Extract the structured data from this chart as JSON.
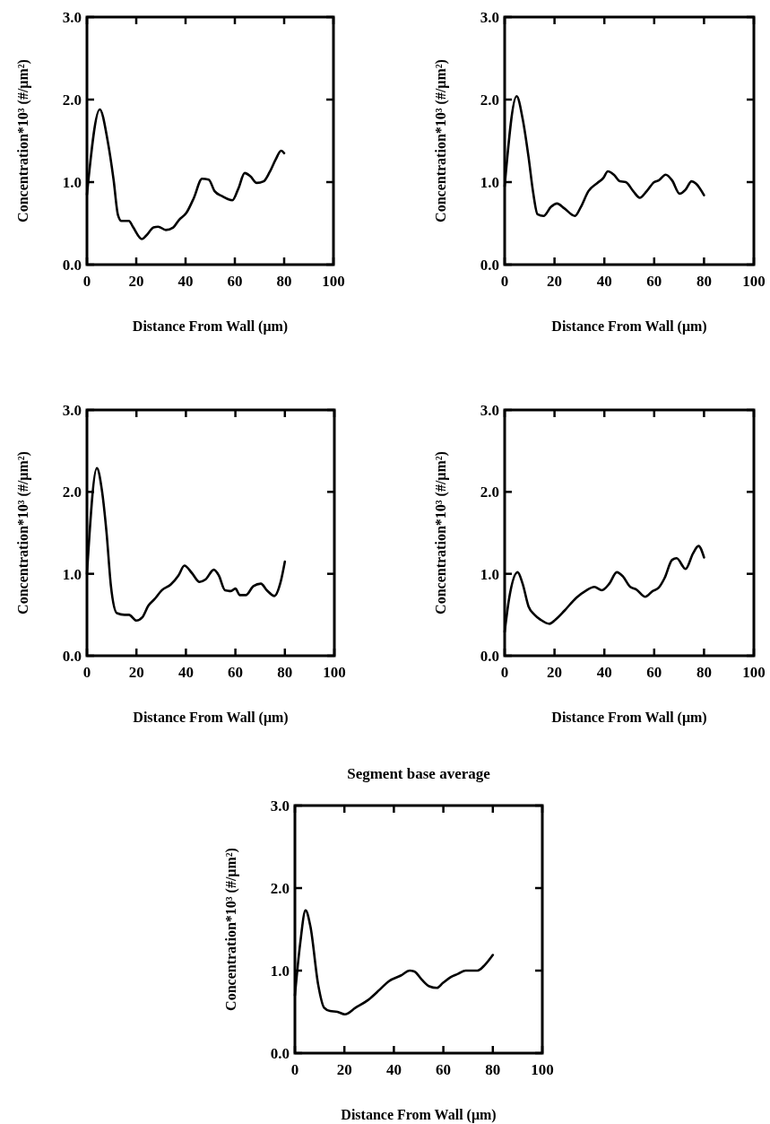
{
  "chart_data": [
    {
      "type": "line",
      "xlabel": "Distance From Wall (μm)",
      "ylabel": "Concentration*10³ (#/μm²)",
      "xlim": [
        0,
        100
      ],
      "xticks": [
        0,
        20,
        40,
        60,
        80,
        100
      ],
      "ylim": [
        0,
        3
      ],
      "yticks": [
        {
          "value": 0,
          "label": "0.0"
        },
        {
          "value": 1,
          "label": "1.0"
        },
        {
          "value": 2,
          "label": "2.0"
        },
        {
          "value": 3,
          "label": "3.0"
        }
      ],
      "grid": false,
      "marker": "none",
      "line_style": "solid",
      "series": [
        {
          "color": "#000000",
          "x": [
            0,
            5.2,
            8.4,
            10.8,
            12.6,
            14,
            17,
            18.8,
            22.3,
            24,
            27,
            28.9,
            32,
            35,
            37.3,
            40.4,
            43.4,
            46.7,
            49.4,
            51.8,
            54.8,
            59,
            61.4,
            64,
            66.3,
            68.9,
            71.7,
            74.1,
            76.5,
            78.8,
            80
          ],
          "values": [
            0.85,
            1.88,
            1.5,
            1.03,
            0.6,
            0.53,
            0.53,
            0.45,
            0.31,
            0.35,
            0.45,
            0.46,
            0.42,
            0.45,
            0.54,
            0.63,
            0.81,
            1.04,
            1.03,
            0.89,
            0.83,
            0.78,
            0.92,
            1.11,
            1.07,
            0.99,
            1.01,
            1.12,
            1.27,
            1.38,
            1.35
          ]
        }
      ]
    },
    {
      "type": "line",
      "xlabel": "Distance From Wall (μm)",
      "ylabel": "Concentration*10³ (#/μm²)",
      "xlim": [
        0,
        100
      ],
      "xticks": [
        0,
        20,
        40,
        60,
        80,
        100
      ],
      "ylim": [
        0,
        3
      ],
      "yticks": [
        {
          "value": 0,
          "label": "0.0"
        },
        {
          "value": 1,
          "label": "1.0"
        },
        {
          "value": 2,
          "label": "2.0"
        },
        {
          "value": 3,
          "label": "3.0"
        }
      ],
      "grid": false,
      "marker": "none",
      "line_style": "solid",
      "series": [
        {
          "color": "#000000",
          "x": [
            0,
            4.8,
            7.2,
            9.6,
            11.4,
            13.2,
            15.6,
            18.6,
            21,
            24,
            28.2,
            30.6,
            33.6,
            37.2,
            39.6,
            41.4,
            43.8,
            46.2,
            48.6,
            51.6,
            54.2,
            57,
            60,
            61.8,
            64.6,
            67.2,
            70.2,
            72.6,
            75,
            76.8,
            80
          ],
          "values": [
            0.95,
            2.04,
            1.77,
            1.3,
            0.88,
            0.61,
            0.59,
            0.7,
            0.74,
            0.68,
            0.59,
            0.7,
            0.89,
            0.99,
            1.05,
            1.13,
            1.09,
            1.01,
            1.0,
            0.89,
            0.81,
            0.89,
            1.0,
            1.02,
            1.09,
            1.02,
            0.86,
            0.91,
            1.01,
            0.98,
            0.84
          ]
        }
      ]
    },
    {
      "type": "line",
      "xlabel": "Distance From Wall (μm)",
      "ylabel": "Concentration*10³ (#/μm²)",
      "xlim": [
        0,
        100
      ],
      "xticks": [
        0,
        20,
        40,
        60,
        80,
        100
      ],
      "ylim": [
        0,
        3
      ],
      "yticks": [
        {
          "value": 0,
          "label": "0.0"
        },
        {
          "value": 1,
          "label": "1.0"
        },
        {
          "value": 2,
          "label": "2.0"
        },
        {
          "value": 3,
          "label": "3.0"
        }
      ],
      "grid": false,
      "marker": "none",
      "line_style": "solid",
      "series": [
        {
          "color": "#000000",
          "x": [
            0,
            4,
            6,
            7.9,
            9.7,
            12.1,
            15.2,
            17,
            20,
            22.4,
            24.8,
            27.3,
            30.3,
            33.9,
            37,
            39.4,
            42.4,
            45.5,
            47.9,
            51.3,
            53.3,
            55.8,
            58.2,
            60,
            61.8,
            64.2,
            67.3,
            70.3,
            72.7,
            75.8,
            78.2,
            80
          ],
          "values": [
            1.0,
            2.29,
            2.03,
            1.51,
            0.85,
            0.52,
            0.5,
            0.5,
            0.43,
            0.47,
            0.61,
            0.69,
            0.8,
            0.87,
            0.98,
            1.1,
            1.01,
            0.9,
            0.93,
            1.05,
            0.98,
            0.8,
            0.79,
            0.82,
            0.74,
            0.74,
            0.85,
            0.88,
            0.8,
            0.73,
            0.89,
            1.15
          ]
        }
      ]
    },
    {
      "type": "line",
      "xlabel": "Distance From Wall (μm)",
      "ylabel": "Concentration*10³ (#/μm²)",
      "xlim": [
        0,
        100
      ],
      "xticks": [
        0,
        20,
        40,
        60,
        80,
        100
      ],
      "ylim": [
        0,
        3
      ],
      "yticks": [
        {
          "value": 0,
          "label": "0.0"
        },
        {
          "value": 1,
          "label": "1.0"
        },
        {
          "value": 2,
          "label": "2.0"
        },
        {
          "value": 3,
          "label": "3.0"
        }
      ],
      "grid": false,
      "marker": "none",
      "line_style": "solid",
      "series": [
        {
          "color": "#000000",
          "x": [
            0,
            1.8,
            5.2,
            7.2,
            9.6,
            12,
            14.4,
            18,
            20.4,
            24,
            28.8,
            32.4,
            36,
            39,
            42,
            45,
            47.4,
            50.4,
            52.8,
            56.4,
            59.4,
            61.8,
            64.2,
            67.2,
            69,
            72.6,
            75.6,
            77.8,
            80
          ],
          "values": [
            0.29,
            0.7,
            1.02,
            0.88,
            0.6,
            0.5,
            0.44,
            0.39,
            0.44,
            0.55,
            0.71,
            0.79,
            0.84,
            0.8,
            0.88,
            1.02,
            0.97,
            0.84,
            0.81,
            0.72,
            0.79,
            0.83,
            0.95,
            1.17,
            1.19,
            1.06,
            1.25,
            1.34,
            1.2
          ]
        }
      ]
    },
    {
      "type": "line",
      "title": "Segment base average",
      "xlabel": "Distance From Wall (μm)",
      "ylabel": "Concentration*10³ (#/μm²)",
      "xlim": [
        0,
        100
      ],
      "xticks": [
        0,
        20,
        40,
        60,
        80,
        100
      ],
      "ylim": [
        0,
        3
      ],
      "yticks": [
        {
          "value": 0,
          "label": "0.0"
        },
        {
          "value": 1,
          "label": "1.0"
        },
        {
          "value": 2,
          "label": "2.0"
        },
        {
          "value": 3,
          "label": "3.0"
        }
      ],
      "grid": false,
      "marker": "none",
      "line_style": "solid",
      "series": [
        {
          "color": "#000000",
          "x": [
            0,
            2.1,
            4.3,
            6.3,
            9.4,
            11.8,
            14.2,
            17.2,
            20.2,
            24.5,
            29.4,
            34.3,
            37.9,
            42.8,
            46.4,
            48.3,
            51.3,
            54.3,
            57.4,
            59.8,
            62.9,
            65.9,
            69,
            73.8,
            76.8,
            80
          ],
          "values": [
            0.7,
            1.32,
            1.73,
            1.53,
            0.83,
            0.55,
            0.51,
            0.5,
            0.47,
            0.55,
            0.64,
            0.77,
            0.87,
            0.94,
            1.0,
            0.99,
            0.89,
            0.81,
            0.79,
            0.85,
            0.92,
            0.96,
            1.0,
            1.0,
            1.07,
            1.19
          ]
        }
      ]
    }
  ]
}
